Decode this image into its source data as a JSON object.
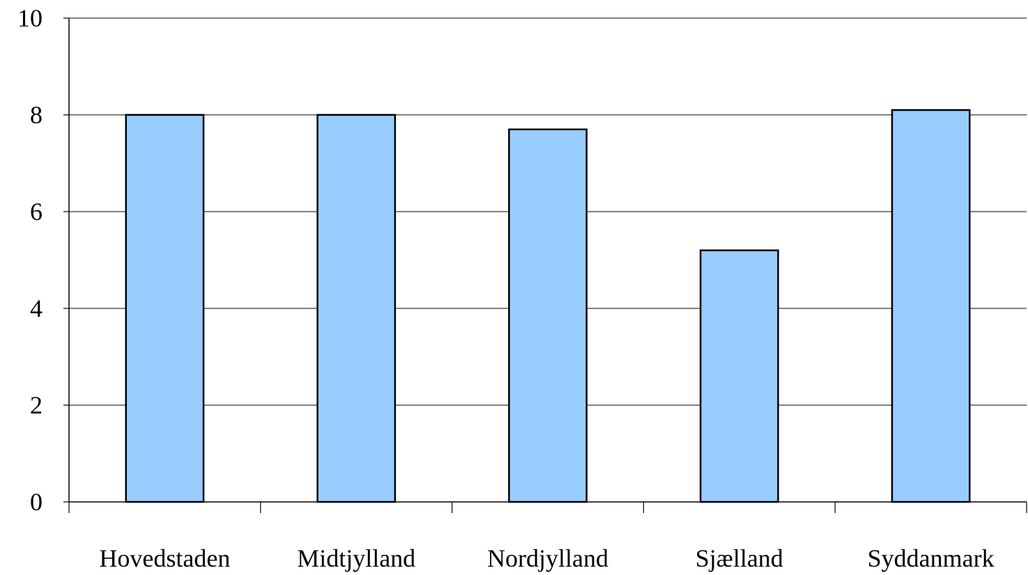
{
  "chart_data": {
    "type": "bar",
    "categories": [
      "Hovedstaden",
      "Midtjylland",
      "Nordjylland",
      "Sjælland",
      "Syddanmark"
    ],
    "values": [
      8.0,
      8.0,
      7.7,
      5.2,
      8.1
    ],
    "title": "",
    "xlabel": "",
    "ylabel": "",
    "ylim": [
      0,
      10
    ],
    "yticks": [
      "0",
      "2",
      "4",
      "6",
      "8",
      "10"
    ],
    "grid": true,
    "legend": "none",
    "bar_color": "#99ccff",
    "bar_border_color": "#000000"
  }
}
